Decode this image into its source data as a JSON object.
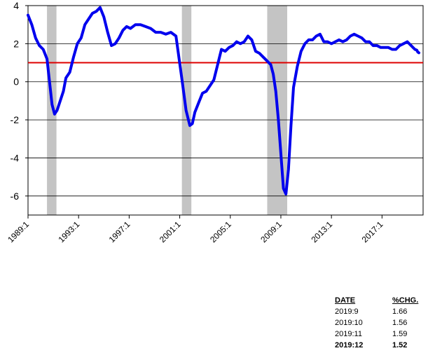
{
  "chart_data": {
    "type": "line",
    "title": "",
    "xlabel": "",
    "ylabel": "",
    "xlim": [
      1989.0,
      2020.25
    ],
    "ylim": [
      -7,
      4
    ],
    "y_ticks": [
      4,
      2,
      0,
      -2,
      -4,
      -6
    ],
    "y_tick_labels": [
      "4",
      "2",
      "0",
      "-2",
      "-4",
      "-6"
    ],
    "x_ticks": [
      1989.0,
      1993.0,
      1997.0,
      2001.0,
      2005.0,
      2009.0,
      2013.0,
      2017.0
    ],
    "x_tick_labels": [
      "1989:1",
      "1993:1",
      "1997:1",
      "2001:1",
      "2005:1",
      "2009:1",
      "2013:1",
      "2017:1"
    ],
    "grid": "horizontal",
    "reference_line": {
      "y": 1.0,
      "color": "#dd0000"
    },
    "recessions": [
      {
        "start": 1990.5,
        "end": 1991.25
      },
      {
        "start": 2001.17,
        "end": 2001.92
      },
      {
        "start": 2007.92,
        "end": 2009.5
      }
    ],
    "series": [
      {
        "color": "#0000ee",
        "x": [
          1989.0,
          1989.3,
          1989.6,
          1989.9,
          1990.2,
          1990.5,
          1990.7,
          1990.9,
          1991.1,
          1991.3,
          1991.5,
          1991.8,
          1992.0,
          1992.3,
          1992.6,
          1992.9,
          1993.2,
          1993.5,
          1993.8,
          1994.1,
          1994.4,
          1994.7,
          1995.0,
          1995.3,
          1995.6,
          1995.9,
          1996.2,
          1996.5,
          1996.8,
          1997.1,
          1997.5,
          1997.9,
          1998.3,
          1998.7,
          1999.1,
          1999.5,
          1999.9,
          2000.3,
          2000.7,
          2000.95,
          2001.2,
          2001.5,
          2001.8,
          2002.0,
          2002.2,
          2002.5,
          2002.8,
          2003.1,
          2003.4,
          2003.7,
          2004.0,
          2004.3,
          2004.6,
          2004.9,
          2005.2,
          2005.5,
          2005.8,
          2006.1,
          2006.4,
          2006.7,
          2007.0,
          2007.3,
          2007.6,
          2007.9,
          2008.2,
          2008.4,
          2008.6,
          2008.8,
          2009.0,
          2009.2,
          2009.4,
          2009.6,
          2009.8,
          2010.0,
          2010.3,
          2010.6,
          2010.9,
          2011.2,
          2011.5,
          2011.8,
          2012.1,
          2012.4,
          2012.7,
          2013.0,
          2013.3,
          2013.6,
          2013.9,
          2014.2,
          2014.5,
          2014.8,
          2015.1,
          2015.4,
          2015.7,
          2016.0,
          2016.3,
          2016.6,
          2016.9,
          2017.2,
          2017.5,
          2017.8,
          2018.1,
          2018.4,
          2018.7,
          2019.0,
          2019.3,
          2019.6,
          2019.75,
          2019.83,
          2019.92
        ],
        "y": [
          3.5,
          3.0,
          2.3,
          1.9,
          1.7,
          1.2,
          0.0,
          -1.2,
          -1.7,
          -1.5,
          -1.1,
          -0.5,
          0.2,
          0.5,
          1.3,
          2.0,
          2.3,
          3.0,
          3.3,
          3.6,
          3.7,
          3.9,
          3.4,
          2.6,
          1.9,
          2.0,
          2.3,
          2.7,
          2.9,
          2.8,
          3.0,
          3.0,
          2.9,
          2.8,
          2.6,
          2.6,
          2.5,
          2.6,
          2.4,
          1.2,
          0.0,
          -1.5,
          -2.3,
          -2.2,
          -1.6,
          -1.1,
          -0.6,
          -0.5,
          -0.2,
          0.1,
          0.9,
          1.7,
          1.6,
          1.8,
          1.9,
          2.1,
          2.0,
          2.1,
          2.4,
          2.2,
          1.6,
          1.5,
          1.3,
          1.1,
          0.9,
          0.4,
          -0.5,
          -2.0,
          -3.8,
          -5.6,
          -5.9,
          -4.6,
          -2.3,
          -0.3,
          0.8,
          1.6,
          2.0,
          2.2,
          2.2,
          2.4,
          2.5,
          2.1,
          2.1,
          2.0,
          2.1,
          2.2,
          2.1,
          2.2,
          2.4,
          2.5,
          2.4,
          2.3,
          2.1,
          2.1,
          1.9,
          1.9,
          1.8,
          1.8,
          1.8,
          1.7,
          1.7,
          1.9,
          2.0,
          2.1,
          1.9,
          1.7,
          1.66,
          1.56,
          1.52
        ]
      }
    ]
  },
  "table": {
    "headers": {
      "date": "DATE",
      "chg": "%CHG."
    },
    "rows": [
      {
        "date": "2019:9",
        "chg": "1.66"
      },
      {
        "date": "2019:10",
        "chg": "1.56"
      },
      {
        "date": "2019:11",
        "chg": "1.59"
      },
      {
        "date": "2019:12",
        "chg": "1.52"
      }
    ]
  }
}
